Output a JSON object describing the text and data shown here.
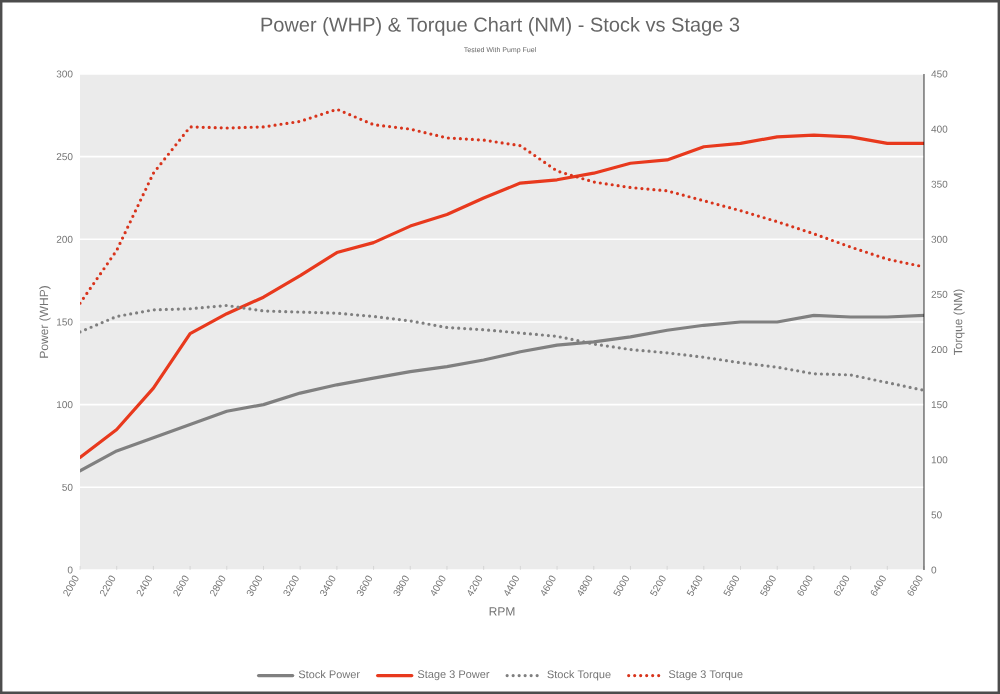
{
  "chart_data": {
    "type": "line",
    "title": "Power (WHP) & Torque Chart (NM) - Stock vs Stage 3",
    "subtitle": "Tested With Pump Fuel",
    "xlabel": "RPM",
    "ylabel": "Power (WHP)",
    "y2label": "Torque (NM)",
    "x": [
      2000,
      2200,
      2400,
      2600,
      2800,
      3000,
      3200,
      3400,
      3600,
      3800,
      4000,
      4200,
      4400,
      4600,
      4800,
      5000,
      5200,
      5400,
      5600,
      5800,
      6000,
      6200,
      6400,
      6600
    ],
    "series": [
      {
        "name": "Stock Power",
        "color": "#808080",
        "line_style": "solid",
        "values": [
          60,
          72,
          80,
          88,
          96,
          100,
          107,
          112,
          116,
          120,
          123,
          127,
          132,
          136,
          138,
          141,
          145,
          148,
          150,
          150,
          154,
          153,
          153,
          154
        ]
      },
      {
        "name": "Stage 3 Power",
        "color": "#e8391d",
        "line_style": "solid",
        "values": [
          68,
          85,
          110,
          143,
          155,
          165,
          178,
          192,
          198,
          208,
          215,
          225,
          234,
          236,
          240,
          246,
          248,
          256,
          258,
          262,
          263,
          262,
          258,
          258
        ]
      },
      {
        "name": "Stock Torque",
        "color": "#7f7f7f",
        "line_style": "dotted",
        "axis": "y2",
        "values": [
          216,
          230,
          236,
          237,
          240,
          235,
          234,
          233,
          230,
          226,
          220,
          218,
          215,
          212,
          205,
          200,
          197,
          193,
          188,
          184,
          178,
          177,
          170,
          163
        ]
      },
      {
        "name": "Stage 3 Torque",
        "color": "#d8341c",
        "line_style": "dotted",
        "axis": "y2",
        "values": [
          242,
          290,
          360,
          402,
          401,
          402,
          407,
          418,
          404,
          400,
          392,
          390,
          385,
          362,
          352,
          347,
          344,
          335,
          326,
          316,
          305,
          293,
          282,
          275
        ]
      }
    ],
    "xlim": [
      2000,
      6600
    ],
    "xticks": [
      2000,
      2200,
      2400,
      2600,
      2800,
      3000,
      3200,
      3400,
      3600,
      3800,
      4000,
      4200,
      4400,
      4600,
      4800,
      5000,
      5200,
      5400,
      5600,
      5800,
      6000,
      6200,
      6400,
      6600
    ],
    "ylim": [
      0,
      300
    ],
    "yticks": [
      0,
      50,
      100,
      150,
      200,
      250,
      300
    ],
    "y2lim": [
      0,
      450
    ],
    "y2ticks": [
      0,
      50,
      100,
      150,
      200,
      250,
      300,
      350,
      400,
      450
    ],
    "grid": "y",
    "legend": "bottom",
    "marker": "none"
  }
}
